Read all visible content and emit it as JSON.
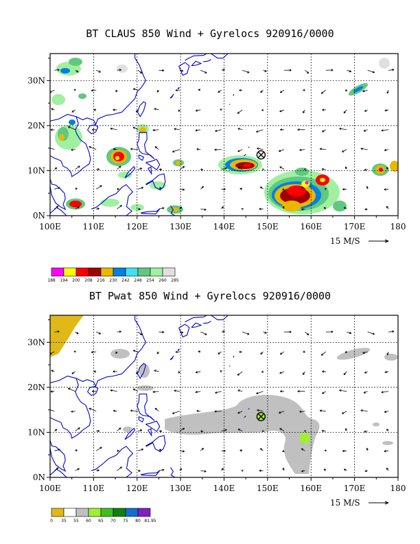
{
  "panels": [
    {
      "title": "BT CLAUS 850 Wind + Gyrelocs 920916/0000",
      "storm_marker": {
        "lon": 148.5,
        "lat": 13.5,
        "symbol": "circled-x"
      },
      "colorbar": {
        "labels": [
          "188",
          "194",
          "200",
          "208",
          "216",
          "230",
          "242",
          "248",
          "254",
          "260",
          "285"
        ],
        "colors": [
          "#ff00ff",
          "#ffff00",
          "#ff0000",
          "#a00000",
          "#e8b800",
          "#0080e0",
          "#40e0f0",
          "#60c880",
          "#a0f0a0",
          "#e0e0e0"
        ]
      }
    },
    {
      "title": "BT Pwat 850 Wind + Gyrelocs 920916/0000",
      "storm_marker": {
        "lon": 148.5,
        "lat": 13.5,
        "symbol": "circled-x"
      },
      "colorbar": {
        "labels": [
          "0",
          "35",
          "55",
          "60",
          "65",
          "70",
          "75",
          "80",
          "81.95"
        ],
        "colors": [
          "#e0b818",
          "#ffffff",
          "#c0c0c0",
          "#a0f030",
          "#40c020",
          "#108010",
          "#1070d0",
          "#8020c0"
        ]
      }
    }
  ],
  "axes": {
    "x_ticks": [
      "100E",
      "110E",
      "120E",
      "130E",
      "140E",
      "150E",
      "160E",
      "170E",
      "180"
    ],
    "y_ticks": [
      "0N",
      "10N",
      "20N",
      "30N"
    ],
    "lon_range": [
      100,
      180
    ],
    "lat_range": [
      0,
      36
    ]
  },
  "reference_vector": {
    "label": "15 M/S"
  },
  "colors": {
    "coastline": "#0000cc",
    "grid": "#000000"
  }
}
